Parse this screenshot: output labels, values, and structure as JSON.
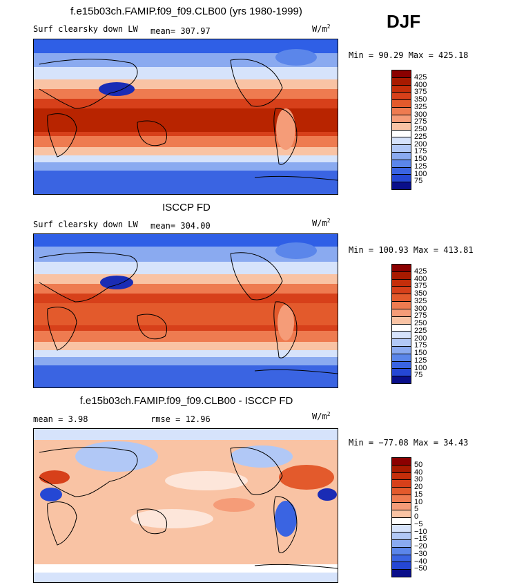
{
  "season": "DJF",
  "units_base": "W/m",
  "units_exp": "2",
  "colors_abs": [
    "#8b0000",
    "#b82400",
    "#d7401a",
    "#e35a2c",
    "#ee7b50",
    "#f59c78",
    "#f9c3a4",
    "#fde6da",
    "#ffffff",
    "#d6e3fb",
    "#b1c8f6",
    "#8aaaf0",
    "#5b86ea",
    "#3a64e2",
    "#2547d4",
    "#1a2cb5",
    "#0a0f8a"
  ],
  "colors_diff": [
    "#8b0000",
    "#b82400",
    "#d7401a",
    "#e35a2c",
    "#ee7b50",
    "#f59c78",
    "#f9c3a4",
    "#fde6da",
    "#ffffff",
    "#d6e3fb",
    "#b1c8f6",
    "#8aaaf0",
    "#5b86ea",
    "#3a64e2",
    "#2547d4",
    "#1a2cb5",
    "#0a0f8a"
  ],
  "panels": [
    {
      "title": "f.e15b03ch.FAMIP.f09_f09.CLB00 (yrs 1980-1999)",
      "left_label": "Surf clearsky down LW",
      "mid_label": "mean=  307.97",
      "minmax": "Min =   90.29 Max =  425.18",
      "ticks": [
        "425",
        "400",
        "375",
        "350",
        "325",
        "300",
        "275",
        "250",
        "225",
        "200",
        "175",
        "150",
        "125",
        "100",
        "75"
      ]
    },
    {
      "title": "ISCCP FD",
      "left_label": "Surf clearsky down LW",
      "mid_label": "mean=  304.00",
      "minmax": "Min =  100.93 Max =  413.81",
      "ticks": [
        "425",
        "400",
        "375",
        "350",
        "325",
        "300",
        "275",
        "250",
        "225",
        "200",
        "175",
        "150",
        "125",
        "100",
        "75"
      ]
    },
    {
      "title": "f.e15b03ch.FAMIP.f09_f09.CLB00 - ISCCP FD",
      "left_label": "mean =    3.98",
      "mid_label": "rmse =   12.96",
      "minmax": "Min =  −77.08 Max =   34.43",
      "ticks": [
        "50",
        "40",
        "30",
        "20",
        "15",
        "10",
        "5",
        "0",
        "−5",
        "−10",
        "−15",
        "−20",
        "−30",
        "−40",
        "−50"
      ]
    }
  ]
}
